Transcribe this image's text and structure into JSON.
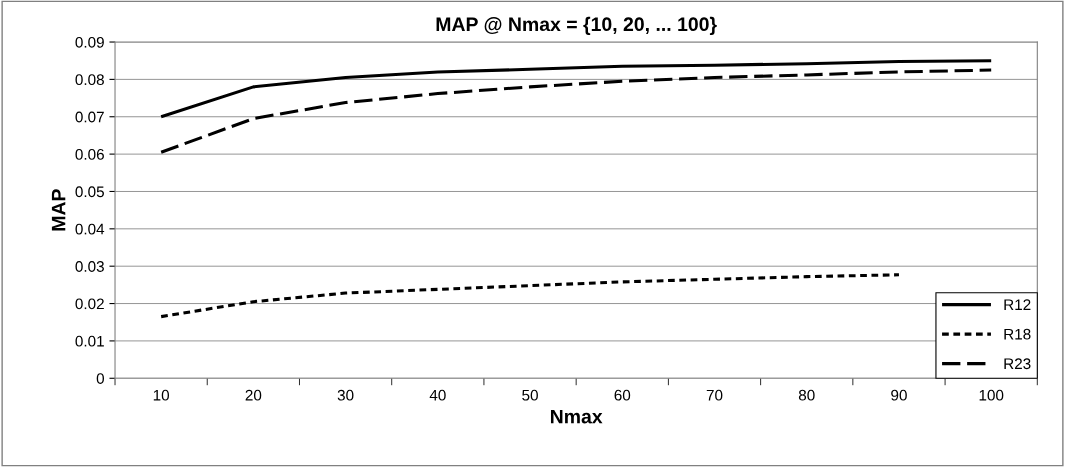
{
  "chart_data": {
    "type": "line",
    "title": "MAP @ Nmax = {10, 20, ... 100}",
    "xlabel": "Nmax",
    "ylabel": "MAP",
    "categories": [
      "10",
      "20",
      "30",
      "40",
      "50",
      "60",
      "70",
      "80",
      "90",
      "100"
    ],
    "series": [
      {
        "name": "R12",
        "color": "#000000",
        "line_style": "solid",
        "values": [
          0.07,
          0.078,
          0.0805,
          0.082,
          0.0827,
          0.0835,
          0.0838,
          0.0842,
          0.0848,
          0.085
        ]
      },
      {
        "name": "R18",
        "color": "#000000",
        "line_style": "dotted",
        "values": [
          0.0165,
          0.0205,
          0.0228,
          0.0238,
          0.0248,
          0.0258,
          0.0265,
          0.0272,
          0.0277,
          null
        ]
      },
      {
        "name": "R23",
        "color": "#000000",
        "line_style": "dashed",
        "values": [
          0.0605,
          0.0695,
          0.0738,
          0.0762,
          0.078,
          0.0795,
          0.0805,
          0.0812,
          0.082,
          0.0825
        ]
      }
    ],
    "ylim": [
      0,
      0.09
    ],
    "yticks": [
      0,
      0.01,
      0.02,
      0.03,
      0.04,
      0.05,
      0.06,
      0.07,
      0.08,
      0.09
    ],
    "grid": "y",
    "legend": "bottom right",
    "marker": "none"
  }
}
